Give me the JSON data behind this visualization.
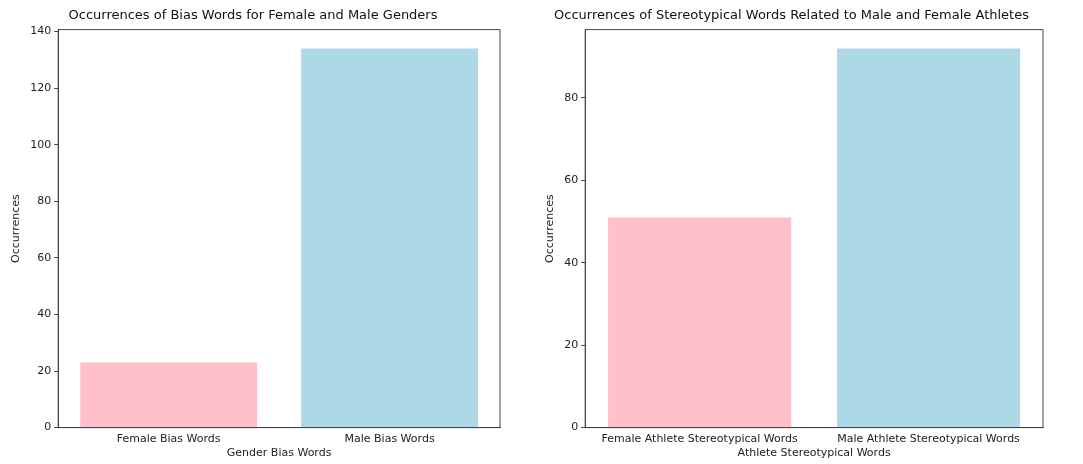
{
  "chart_data": [
    {
      "type": "bar",
      "title": "Occurrences of Bias Words for Female and Male Genders",
      "xlabel": "Gender Bias Words",
      "ylabel": "Occurrences",
      "categories": [
        "Female Bias Words",
        "Male Bias Words"
      ],
      "values": [
        23,
        134
      ],
      "colors": [
        "#ffc0cb",
        "#add8e6"
      ],
      "ylim": [
        0,
        140.7
      ],
      "yticks": [
        0,
        20,
        40,
        60,
        80,
        100,
        120,
        140
      ],
      "grid": false,
      "legend": false
    },
    {
      "type": "bar",
      "title": "Occurrences of Stereotypical Words Related to Male and Female Athletes",
      "xlabel": "Athlete Stereotypical Words",
      "ylabel": "Occurrences",
      "categories": [
        "Female Athlete Stereotypical Words",
        "Male Athlete Stereotypical Words"
      ],
      "values": [
        51,
        92
      ],
      "colors": [
        "#ffc0cb",
        "#add8e6"
      ],
      "ylim": [
        0,
        96.6
      ],
      "yticks": [
        0,
        20,
        40,
        60,
        80
      ],
      "grid": false,
      "legend": false
    }
  ]
}
